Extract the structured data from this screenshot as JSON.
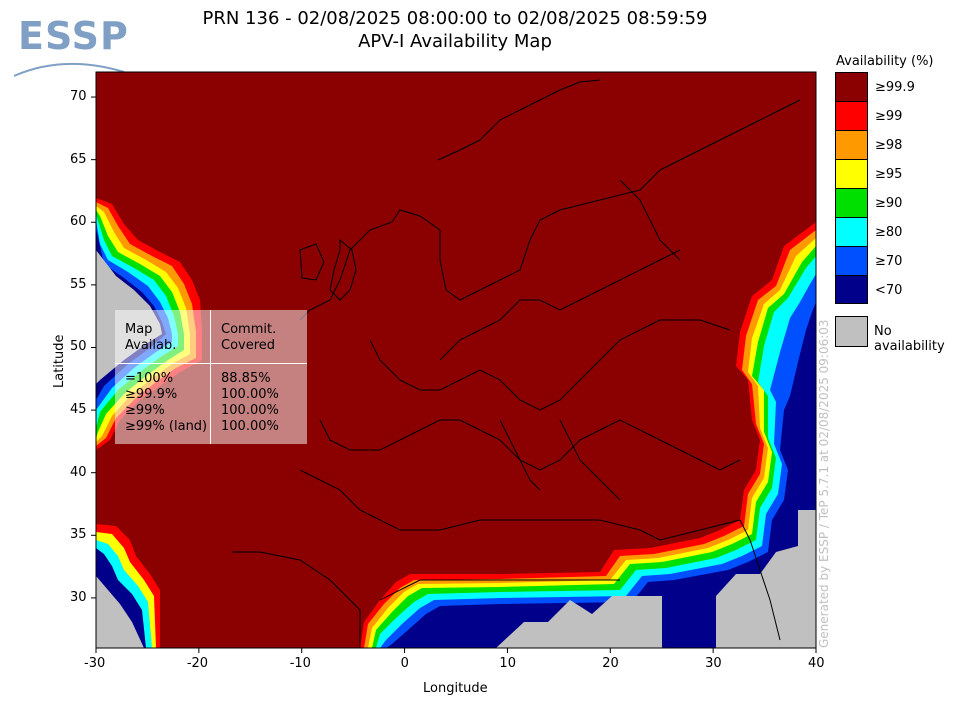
{
  "logo": {
    "text": "ESSP"
  },
  "header": {
    "title_line1": "PRN 136 - 02/08/2025 08:00:00 to 02/08/2025 08:59:59",
    "title_line2": "APV-I Availability Map"
  },
  "map": {
    "lon_range": [
      -30,
      40
    ],
    "lat_range": [
      26,
      72
    ],
    "xlabel": "Longitude",
    "ylabel": "Latitude",
    "lon_ticks": [
      "-30",
      "-20",
      "-10",
      "0",
      "10",
      "20",
      "30",
      "40"
    ],
    "lat_ticks": [
      "30",
      "35",
      "40",
      "45",
      "50",
      "55",
      "60",
      "65",
      "70"
    ],
    "background_color": "#8b0000",
    "no_availability_color": "#c0c0c0"
  },
  "legend": {
    "title": "Availability (%)",
    "items": [
      {
        "label": "≥99.9",
        "color": "#8b0000"
      },
      {
        "label": "≥99",
        "color": "#ff0000"
      },
      {
        "label": "≥98",
        "color": "#ff9900"
      },
      {
        "label": "≥95",
        "color": "#ffff00"
      },
      {
        "label": "≥90",
        "color": "#00e000"
      },
      {
        "label": "≥80",
        "color": "#00ffff"
      },
      {
        "label": "≥70",
        "color": "#0050ff"
      },
      {
        "label": "<70",
        "color": "#00008b"
      }
    ],
    "no_availability_label": "No availability"
  },
  "stats_table": {
    "header_left": "Map\nAvailab.",
    "header_right": "Commit.\nCovered",
    "rows": [
      {
        "map": "=100%",
        "covered": "88.85%"
      },
      {
        "map": "≥99.9%",
        "covered": "100.00%"
      },
      {
        "map": "≥99%",
        "covered": "100.00%"
      },
      {
        "map": "≥99% (land)",
        "covered": "100.00%"
      }
    ]
  },
  "credit": "Generated by ESSP / TeP 5.7.1 at 02/08/2025 09:06:03"
}
